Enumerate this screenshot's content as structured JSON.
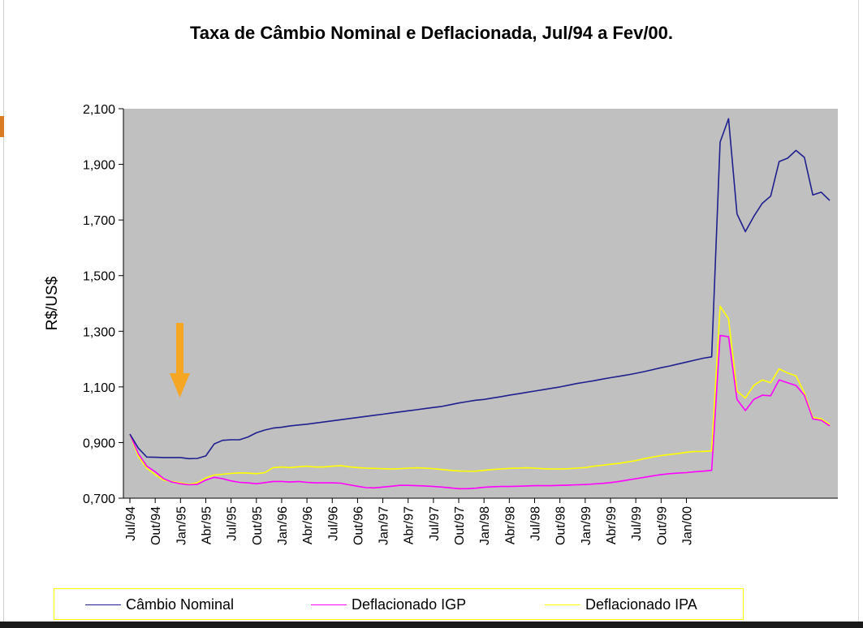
{
  "chart_data": {
    "type": "line",
    "title": "Taxa de Câmbio Nominal e Deflacionada, Jul/94 a Fev/00.",
    "xlabel": "",
    "ylabel": "R$/US$",
    "ylim": [
      0.7,
      2.1
    ],
    "y_ticks": [
      "0,700",
      "0,900",
      "1,100",
      "1,300",
      "1,500",
      "1,700",
      "1,900",
      "2,100"
    ],
    "y_tick_values": [
      0.7,
      0.9,
      1.1,
      1.3,
      1.5,
      1.7,
      1.9,
      2.1
    ],
    "tick_labels": [
      "Jul/94",
      "Out/94",
      "Jan/95",
      "Abr/95",
      "Jul/95",
      "Out/95",
      "Jan/96",
      "Abr/96",
      "Jul/96",
      "Out/96",
      "Jan/97",
      "Abr/97",
      "Jul/97",
      "Out/97",
      "Jan/98",
      "Abr/98",
      "Jul/98",
      "Out/98",
      "Jan/99",
      "Abr/99",
      "Jul/99",
      "Out/99",
      "Jan/00"
    ],
    "grid": false,
    "legend_position": "bottom",
    "plot_background": "#c0c0c0",
    "annotation": "orange down arrow near Dez/94",
    "series": [
      {
        "name": "Câmbio Nominal",
        "color": "#1f1f8f",
        "values": [
          0.93,
          0.88,
          0.848,
          0.847,
          0.846,
          0.846,
          0.846,
          0.842,
          0.843,
          0.852,
          0.895,
          0.908,
          0.91,
          0.91,
          0.92,
          0.935,
          0.945,
          0.952,
          0.955,
          0.96,
          0.963,
          0.966,
          0.97,
          0.974,
          0.978,
          0.982,
          0.986,
          0.99,
          0.994,
          0.998,
          1.002,
          1.006,
          1.01,
          1.014,
          1.018,
          1.022,
          1.026,
          1.03,
          1.036,
          1.042,
          1.047,
          1.052,
          1.055,
          1.06,
          1.065,
          1.07,
          1.075,
          1.08,
          1.085,
          1.09,
          1.095,
          1.1,
          1.106,
          1.112,
          1.117,
          1.122,
          1.128,
          1.133,
          1.138,
          1.143,
          1.149,
          1.155,
          1.162,
          1.169,
          1.175,
          1.182,
          1.189,
          1.196,
          1.203,
          1.208,
          1.98,
          2.064,
          1.722,
          1.658,
          1.713,
          1.76,
          1.786,
          1.91,
          1.922,
          1.95,
          1.925,
          1.79,
          1.8,
          1.77
        ]
      },
      {
        "name": "Deflacionado IGP",
        "color": "#ff00ff",
        "values": [
          0.93,
          0.86,
          0.815,
          0.795,
          0.77,
          0.758,
          0.752,
          0.748,
          0.75,
          0.765,
          0.775,
          0.77,
          0.762,
          0.757,
          0.755,
          0.752,
          0.756,
          0.76,
          0.76,
          0.758,
          0.76,
          0.757,
          0.755,
          0.755,
          0.755,
          0.754,
          0.748,
          0.743,
          0.738,
          0.737,
          0.74,
          0.743,
          0.746,
          0.746,
          0.745,
          0.744,
          0.742,
          0.74,
          0.737,
          0.734,
          0.734,
          0.736,
          0.739,
          0.741,
          0.742,
          0.742,
          0.743,
          0.744,
          0.745,
          0.745,
          0.745,
          0.746,
          0.747,
          0.748,
          0.749,
          0.751,
          0.753,
          0.756,
          0.76,
          0.765,
          0.77,
          0.775,
          0.78,
          0.785,
          0.788,
          0.79,
          0.792,
          0.795,
          0.797,
          0.8,
          1.285,
          1.28,
          1.055,
          1.015,
          1.055,
          1.07,
          1.068,
          1.125,
          1.115,
          1.105,
          1.07,
          0.985,
          0.98,
          0.96
        ]
      },
      {
        "name": "Deflacionado IPA",
        "color": "#ffff00",
        "values": [
          0.93,
          0.85,
          0.808,
          0.785,
          0.765,
          0.76,
          0.755,
          0.75,
          0.755,
          0.773,
          0.783,
          0.786,
          0.789,
          0.791,
          0.79,
          0.788,
          0.792,
          0.81,
          0.812,
          0.81,
          0.813,
          0.815,
          0.812,
          0.812,
          0.815,
          0.817,
          0.813,
          0.81,
          0.808,
          0.807,
          0.806,
          0.805,
          0.806,
          0.808,
          0.809,
          0.808,
          0.806,
          0.803,
          0.8,
          0.798,
          0.797,
          0.797,
          0.8,
          0.803,
          0.805,
          0.807,
          0.808,
          0.809,
          0.808,
          0.806,
          0.805,
          0.805,
          0.806,
          0.808,
          0.81,
          0.815,
          0.818,
          0.822,
          0.825,
          0.83,
          0.835,
          0.842,
          0.848,
          0.853,
          0.857,
          0.86,
          0.865,
          0.868,
          0.868,
          0.87,
          1.39,
          1.345,
          1.085,
          1.06,
          1.105,
          1.125,
          1.115,
          1.165,
          1.15,
          1.14,
          1.078,
          0.99,
          0.985,
          0.965
        ]
      }
    ]
  }
}
